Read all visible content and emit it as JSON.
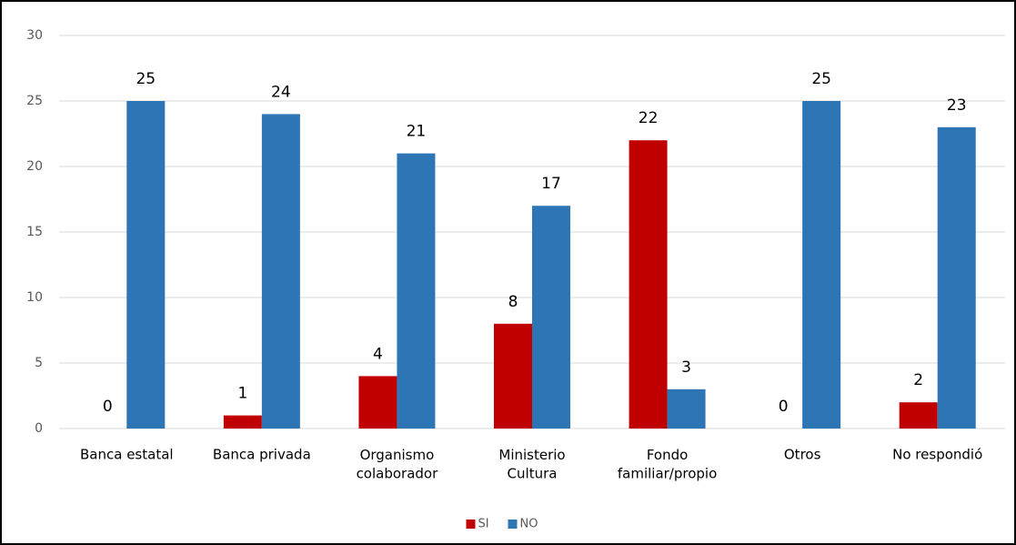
{
  "chart_data": {
    "type": "bar",
    "categories": [
      "Banca estatal",
      "Banca privada",
      "Organismo\ncolaborador",
      "Ministerio\nCultura",
      "Fondo\nfamiliar/propio",
      "Otros",
      "No respondió"
    ],
    "series": [
      {
        "name": "SI",
        "color": "#c00000",
        "values": [
          0,
          1,
          4,
          8,
          22,
          0,
          2
        ]
      },
      {
        "name": "NO",
        "color": "#2e75b6",
        "values": [
          25,
          24,
          21,
          17,
          3,
          25,
          23
        ]
      }
    ],
    "ylim": [
      0,
      30
    ],
    "yticks": [
      0,
      5,
      10,
      15,
      20,
      25,
      30
    ],
    "grid": true,
    "legend": "bottom"
  }
}
